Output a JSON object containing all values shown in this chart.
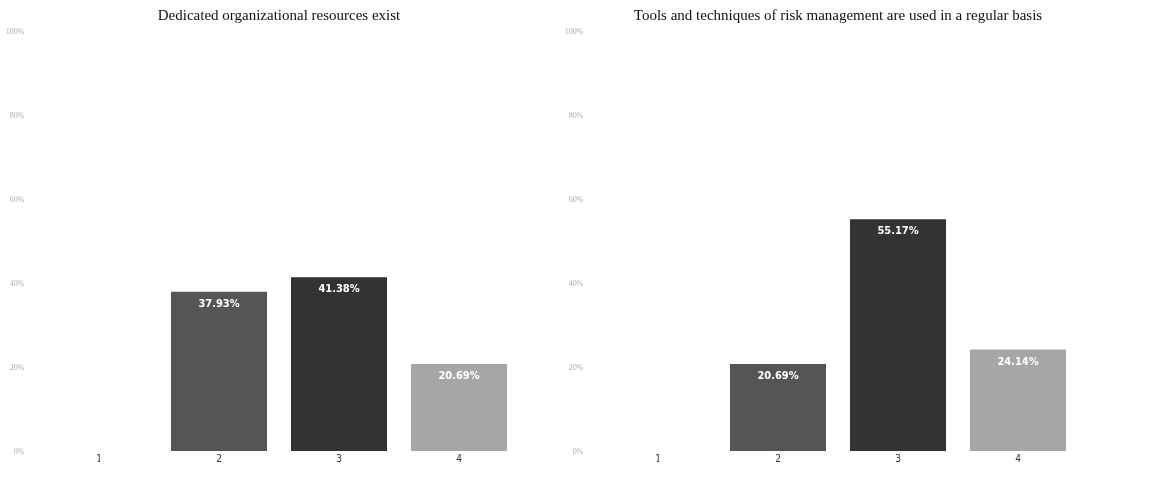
{
  "chart_data": [
    {
      "type": "bar",
      "title": "Dedicated organizational resources exist",
      "categories": [
        "1",
        "2",
        "3",
        "4"
      ],
      "values": [
        0,
        37.93,
        41.38,
        20.69
      ],
      "colors": [
        "#555555",
        "#555555",
        "#333333",
        "#a6a6a6"
      ],
      "value_labels": [
        null,
        "37.93%",
        "41.38%",
        "20.69%"
      ],
      "ylim": [
        0,
        100
      ],
      "yticks": [
        {
          "value": 0,
          "label": "0%"
        },
        {
          "value": 20,
          "label": "20%"
        },
        {
          "value": 40,
          "label": "40%"
        },
        {
          "value": 60,
          "label": "60%"
        },
        {
          "value": 80,
          "label": "80%"
        },
        {
          "value": 100,
          "label": "100%"
        }
      ],
      "grid": false,
      "legend": false
    },
    {
      "type": "bar",
      "title": "Tools and techniques of risk management are used in a regular basis",
      "categories": [
        "1",
        "2",
        "3",
        "4"
      ],
      "values": [
        0,
        20.69,
        55.17,
        24.14
      ],
      "colors": [
        "#555555",
        "#555555",
        "#333333",
        "#a6a6a6"
      ],
      "value_labels": [
        null,
        "20.69%",
        "55.17%",
        "24.14%"
      ],
      "ylim": [
        0,
        100
      ],
      "yticks": [
        {
          "value": 0,
          "label": "0%"
        },
        {
          "value": 20,
          "label": "20%"
        },
        {
          "value": 40,
          "label": "40%"
        },
        {
          "value": 60,
          "label": "60%"
        },
        {
          "value": 80,
          "label": "80%"
        },
        {
          "value": 100,
          "label": "100%"
        }
      ],
      "grid": false,
      "legend": false
    }
  ]
}
